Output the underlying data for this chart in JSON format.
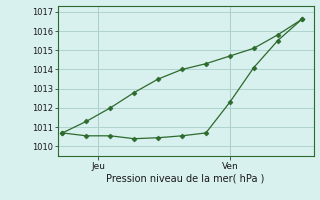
{
  "line1_x": [
    0,
    1,
    2,
    3,
    4,
    5,
    6,
    7,
    8,
    9,
    10
  ],
  "line1_y": [
    1010.7,
    1010.55,
    1010.55,
    1010.4,
    1010.45,
    1010.55,
    1010.7,
    1012.3,
    1014.1,
    1015.5,
    1016.6
  ],
  "line2_x": [
    0,
    1,
    2,
    3,
    4,
    5,
    6,
    7,
    8,
    9,
    10
  ],
  "line2_y": [
    1010.7,
    1011.3,
    1012.0,
    1012.8,
    1013.5,
    1014.0,
    1014.3,
    1014.7,
    1015.1,
    1015.8,
    1016.6
  ],
  "line_color": "#2d6a2d",
  "bg_color": "#d8f0ee",
  "grid_color": "#aed4ce",
  "ylim": [
    1009.5,
    1017.3
  ],
  "yticks": [
    1010,
    1011,
    1012,
    1013,
    1014,
    1015,
    1016,
    1017
  ],
  "xlabel": "Pression niveau de la mer( hPa )",
  "x_jeu": 1.5,
  "x_ven": 7.0,
  "xlim": [
    -0.2,
    10.5
  ],
  "figsize": [
    3.2,
    2.0
  ],
  "dpi": 100
}
